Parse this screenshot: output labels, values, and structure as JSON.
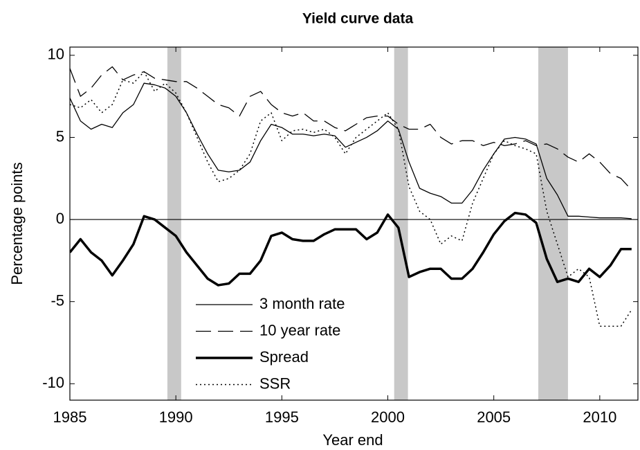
{
  "chart_data": {
    "type": "line",
    "title": "Yield curve data",
    "x_label": "Year end",
    "y_label": "Percentage points",
    "x": [
      1985,
      1985.5,
      1986,
      1986.5,
      1987,
      1987.5,
      1988,
      1988.5,
      1989,
      1989.5,
      1990,
      1990.5,
      1991,
      1991.5,
      1992,
      1992.5,
      1993,
      1993.5,
      1994,
      1994.5,
      1995,
      1995.5,
      1996,
      1996.5,
      1997,
      1997.5,
      1998,
      1998.5,
      1999,
      1999.5,
      2000,
      2000.5,
      2001,
      2001.5,
      2002,
      2002.5,
      2003,
      2003.5,
      2004,
      2004.5,
      2005,
      2005.5,
      2006,
      2006.5,
      2007,
      2007.5,
      2008,
      2008.5,
      2009,
      2009.5,
      2010,
      2010.5,
      2011,
      2011.5
    ],
    "series": [
      {
        "name": "3 month rate",
        "color": "#000000",
        "line_style": "solid",
        "line_width": 1.3,
        "values": [
          7.4,
          6.0,
          5.5,
          5.8,
          5.6,
          6.5,
          7.0,
          8.3,
          8.2,
          8.0,
          7.5,
          6.5,
          5.2,
          4.0,
          3.0,
          2.9,
          3.0,
          3.5,
          4.8,
          5.8,
          5.6,
          5.2,
          5.2,
          5.1,
          5.2,
          5.1,
          4.4,
          4.7,
          5.0,
          5.4,
          6.0,
          5.5,
          3.5,
          1.9,
          1.6,
          1.4,
          1.0,
          1.0,
          1.8,
          3.0,
          4.0,
          4.9,
          5.0,
          4.9,
          4.6,
          2.5,
          1.5,
          0.2,
          0.2,
          0.15,
          0.1,
          0.1,
          0.1,
          0.05
        ]
      },
      {
        "name": "10 year rate",
        "color": "#000000",
        "line_style": "dashed",
        "line_width": 1.3,
        "values": [
          9.2,
          7.5,
          8.0,
          8.8,
          9.3,
          8.5,
          8.8,
          9.0,
          8.6,
          8.5,
          8.4,
          8.4,
          8.0,
          7.5,
          7.0,
          6.8,
          6.3,
          7.5,
          7.8,
          7.0,
          6.5,
          6.3,
          6.5,
          6.0,
          6.0,
          5.6,
          5.4,
          5.8,
          6.2,
          6.3,
          6.3,
          5.8,
          5.5,
          5.5,
          5.8,
          5.0,
          4.6,
          4.8,
          4.8,
          4.5,
          4.7,
          4.5,
          4.6,
          4.8,
          4.5,
          4.6,
          4.3,
          3.8,
          3.5,
          4.0,
          3.5,
          2.8,
          2.5,
          1.8
        ]
      },
      {
        "name": "Spread",
        "color": "#000000",
        "line_style": "solid",
        "line_width": 3.5,
        "values": [
          -2.0,
          -1.2,
          -2.0,
          -2.5,
          -3.4,
          -2.5,
          -1.5,
          0.2,
          0.0,
          -0.5,
          -1.0,
          -2.0,
          -2.8,
          -3.6,
          -4.0,
          -3.9,
          -3.3,
          -3.3,
          -2.5,
          -1.0,
          -0.8,
          -1.2,
          -1.3,
          -1.3,
          -0.9,
          -0.6,
          -0.6,
          -0.6,
          -1.2,
          -0.8,
          0.3,
          -0.5,
          -3.5,
          -3.2,
          -3.0,
          -3.0,
          -3.6,
          -3.6,
          -3.0,
          -2.0,
          -0.9,
          -0.1,
          0.4,
          0.3,
          -0.2,
          -2.4,
          -3.8,
          -3.6,
          -3.8,
          -3.0,
          -3.5,
          -2.8,
          -1.8,
          -1.8
        ]
      },
      {
        "name": "SSR",
        "color": "#000000",
        "line_style": "dotted",
        "line_width": 1.5,
        "values": [
          7.0,
          6.8,
          7.3,
          6.5,
          7.0,
          8.5,
          8.3,
          9.0,
          7.8,
          8.3,
          7.7,
          6.5,
          5.0,
          3.5,
          2.3,
          2.5,
          3.0,
          4.0,
          6.0,
          6.5,
          4.8,
          5.4,
          5.5,
          5.3,
          5.5,
          5.0,
          4.0,
          5.0,
          5.5,
          6.0,
          6.5,
          5.5,
          2.0,
          0.5,
          0.0,
          -1.5,
          -1.0,
          -1.3,
          1.0,
          2.5,
          4.0,
          4.8,
          4.5,
          4.3,
          4.0,
          0.5,
          -1.5,
          -3.5,
          -3.0,
          -3.5,
          -6.5,
          -6.5,
          -6.5,
          -5.5
        ]
      }
    ],
    "shaded_regions": [
      [
        1989.6,
        1990.25
      ],
      [
        2000.3,
        2000.95
      ],
      [
        2007.1,
        2008.5
      ]
    ],
    "shade_color": "#c8c8c8",
    "hline": 0,
    "xlim": [
      1985,
      2011.8
    ],
    "xticks": [
      1985,
      1990,
      1995,
      2000,
      2005,
      2010
    ],
    "ylim": [
      -11,
      10.5
    ],
    "yticks": [
      -10,
      -5,
      0,
      5,
      10
    ],
    "grid": false,
    "legend_loc": "lower center"
  }
}
